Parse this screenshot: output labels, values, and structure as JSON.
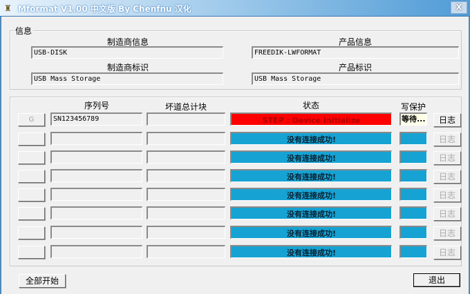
{
  "window": {
    "title": "Mformat V1.00 中文版 By Chenfnu 汉化",
    "close_label": "X"
  },
  "info": {
    "group_label": "信息",
    "manufacturer_info_label": "制造商信息",
    "manufacturer_info": "USB-DISK",
    "product_info_label": "产品信息",
    "product_info": "FREEDIK-LWFORMAT",
    "manufacturer_id_label": "制造商标识",
    "manufacturer_id": "USB Mass Storage",
    "product_id_label": "产品标识",
    "product_id": "USB Mass Storage"
  },
  "ports": {
    "headers": {
      "serial": "序列号",
      "bad_blocks": "坏道总计块",
      "status": "状态",
      "write_protect": "写保护"
    },
    "rows": [
      {
        "button": "G",
        "serial": "SN123456789",
        "bad_blocks": "",
        "status": "STEP : Device Initialize",
        "status_color": "#ff0000",
        "write_protect": "等待...",
        "log": "日志",
        "active": true
      },
      {
        "button": "",
        "serial": "",
        "bad_blocks": "",
        "status": "没有连接成功!",
        "status_color": "#16a3d3",
        "write_protect": "",
        "log": "日志",
        "active": false
      },
      {
        "button": "",
        "serial": "",
        "bad_blocks": "",
        "status": "没有连接成功!",
        "status_color": "#16a3d3",
        "write_protect": "",
        "log": "日志",
        "active": false
      },
      {
        "button": "",
        "serial": "",
        "bad_blocks": "",
        "status": "没有连接成功!",
        "status_color": "#16a3d3",
        "write_protect": "",
        "log": "日志",
        "active": false
      },
      {
        "button": "",
        "serial": "",
        "bad_blocks": "",
        "status": "没有连接成功!",
        "status_color": "#16a3d3",
        "write_protect": "",
        "log": "日志",
        "active": false
      },
      {
        "button": "",
        "serial": "",
        "bad_blocks": "",
        "status": "没有连接成功!",
        "status_color": "#16a3d3",
        "write_protect": "",
        "log": "日志",
        "active": false
      },
      {
        "button": "",
        "serial": "",
        "bad_blocks": "",
        "status": "没有连接成功!",
        "status_color": "#16a3d3",
        "write_protect": "",
        "log": "日志",
        "active": false
      },
      {
        "button": "",
        "serial": "",
        "bad_blocks": "",
        "status": "没有连接成功!",
        "status_color": "#16a3d3",
        "write_protect": "",
        "log": "日志",
        "active": false
      }
    ]
  },
  "footer": {
    "start_all": "全部开始",
    "exit": "退出"
  }
}
